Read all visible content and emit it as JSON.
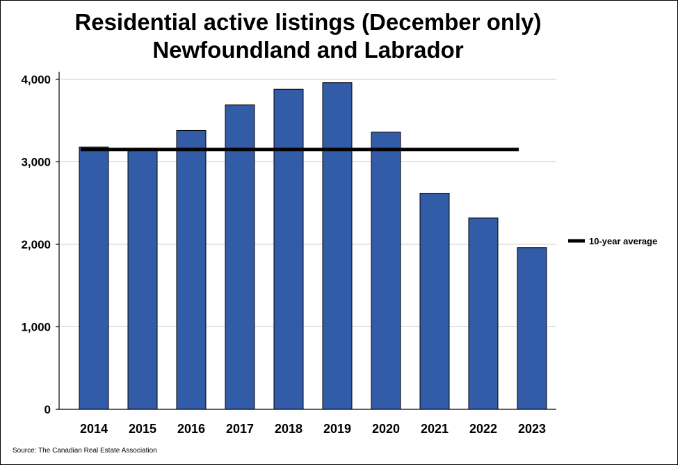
{
  "chart_data": {
    "type": "bar",
    "title": "Residential active listings (December only)",
    "subtitle": "Newfoundland and Labrador",
    "categories": [
      "2014",
      "2015",
      "2016",
      "2017",
      "2018",
      "2019",
      "2020",
      "2021",
      "2022",
      "2023"
    ],
    "series": [
      {
        "values": [
          3180,
          3150,
          3380,
          3690,
          3880,
          3960,
          3360,
          2620,
          2320,
          1960
        ],
        "color": "#335ca8"
      }
    ],
    "reference_line": {
      "name": "10-year average",
      "value": 3150,
      "color": "#000000"
    },
    "ylim": [
      0,
      4000
    ],
    "yticks": [
      0,
      1000,
      2000,
      3000,
      4000
    ],
    "ytick_labels": [
      "0",
      "1,000",
      "2,000",
      "3,000",
      "4,000"
    ],
    "grid": true,
    "legend_position": "right",
    "xlabel": "",
    "ylabel": ""
  },
  "source": "Source: The Canadian Real Estate Association"
}
